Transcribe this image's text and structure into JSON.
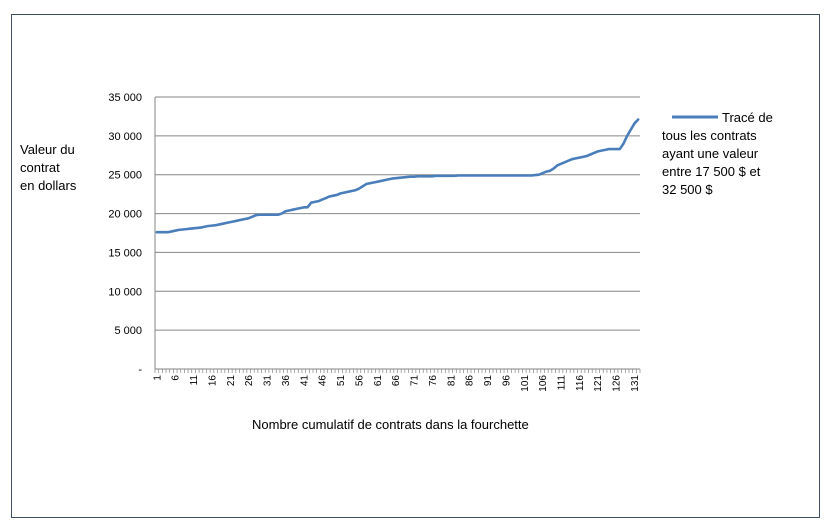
{
  "chart_data": {
    "type": "line",
    "xlabel": "Nombre cumulatif de contrats dans la fourchette",
    "ylabel_lines": [
      "Valeur du",
      "contrat",
      "en dollars"
    ],
    "ylim": [
      0,
      35000
    ],
    "y_ticks": [
      0,
      5000,
      10000,
      15000,
      20000,
      25000,
      30000,
      35000
    ],
    "y_tick_labels": [
      "-",
      "5 000",
      "10 000",
      "15 000",
      "20 000",
      "25 000",
      "30 000",
      "35 000"
    ],
    "x_count": 132,
    "x_tick_labels": [
      "1",
      "6",
      "11",
      "16",
      "21",
      "26",
      "31",
      "36",
      "41",
      "46",
      "51",
      "56",
      "61",
      "66",
      "71",
      "76",
      "81",
      "86",
      "91",
      "96",
      "101",
      "106",
      "111",
      "116",
      "121",
      "126",
      "131"
    ],
    "grid": true,
    "legend_position": "right",
    "legend_lines": [
      "Tracé de",
      "tous les contrats",
      "ayant une valeur",
      "entre 17 500  $ et",
      "32 500  $"
    ],
    "series": [
      {
        "color": "#4a7ebb",
        "values": [
          17600,
          17600,
          17600,
          17600,
          17700,
          17800,
          17900,
          17950,
          18000,
          18050,
          18100,
          18150,
          18200,
          18300,
          18400,
          18450,
          18500,
          18600,
          18700,
          18800,
          18900,
          19000,
          19100,
          19200,
          19300,
          19400,
          19600,
          19800,
          19850,
          19850,
          19850,
          19850,
          19850,
          19850,
          20000,
          20300,
          20400,
          20500,
          20600,
          20700,
          20800,
          20800,
          21400,
          21500,
          21600,
          21800,
          22000,
          22200,
          22300,
          22400,
          22600,
          22700,
          22800,
          22900,
          23000,
          23200,
          23500,
          23800,
          23900,
          24000,
          24100,
          24200,
          24300,
          24400,
          24500,
          24550,
          24600,
          24650,
          24700,
          24750,
          24750,
          24800,
          24800,
          24800,
          24800,
          24800,
          24850,
          24850,
          24850,
          24850,
          24850,
          24850,
          24900,
          24900,
          24900,
          24900,
          24900,
          24900,
          24900,
          24900,
          24900,
          24900,
          24900,
          24900,
          24900,
          24900,
          24900,
          24900,
          24900,
          24900,
          24900,
          24900,
          24900,
          24950,
          25000,
          25200,
          25400,
          25500,
          25800,
          26200,
          26400,
          26600,
          26800,
          27000,
          27100,
          27200,
          27300,
          27400,
          27600,
          27800,
          28000,
          28100,
          28200,
          28300,
          28300,
          28300,
          28300,
          29000,
          30000,
          30800,
          31600,
          32100
        ]
      }
    ]
  }
}
